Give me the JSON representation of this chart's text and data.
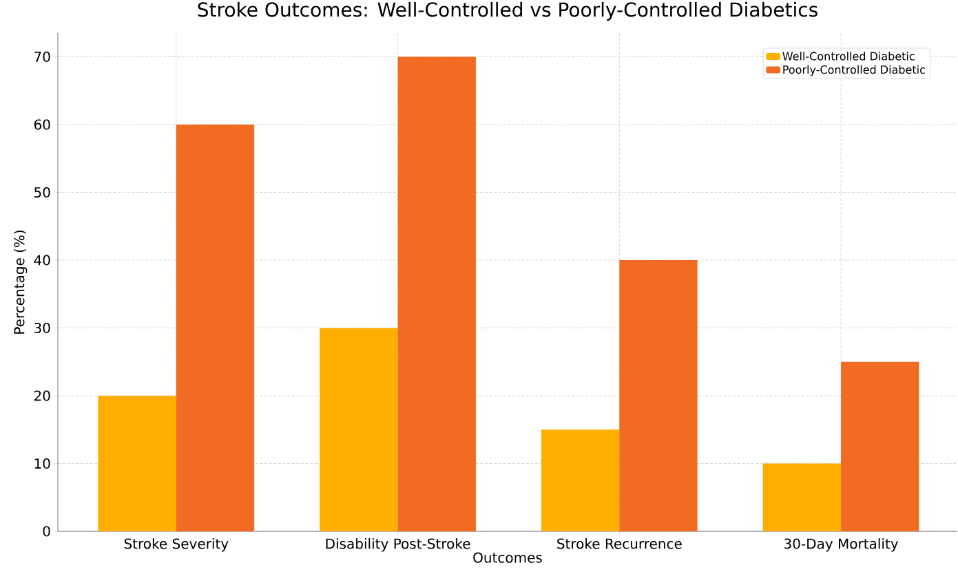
{
  "chart_data": {
    "type": "bar",
    "title": "Stroke Outcomes: Well-Controlled vs Poorly-Controlled Diabetics",
    "xlabel": "Outcomes",
    "ylabel": "Percentage (%)",
    "categories": [
      "Stroke Severity",
      "Disability Post-Stroke",
      "Stroke Recurrence",
      "30-Day Mortality"
    ],
    "series": [
      {
        "name": "Well-Controlled Diabetic",
        "color": "#ffae00",
        "values": [
          20,
          30,
          15,
          10
        ]
      },
      {
        "name": "Poorly-Controlled Diabetic",
        "color": "#f26b22",
        "values": [
          60,
          70,
          40,
          25
        ]
      }
    ],
    "ylim": [
      0,
      73.5
    ],
    "yticks": [
      0,
      10,
      20,
      30,
      40,
      50,
      60,
      70
    ],
    "grid": true,
    "legend": "top right"
  }
}
